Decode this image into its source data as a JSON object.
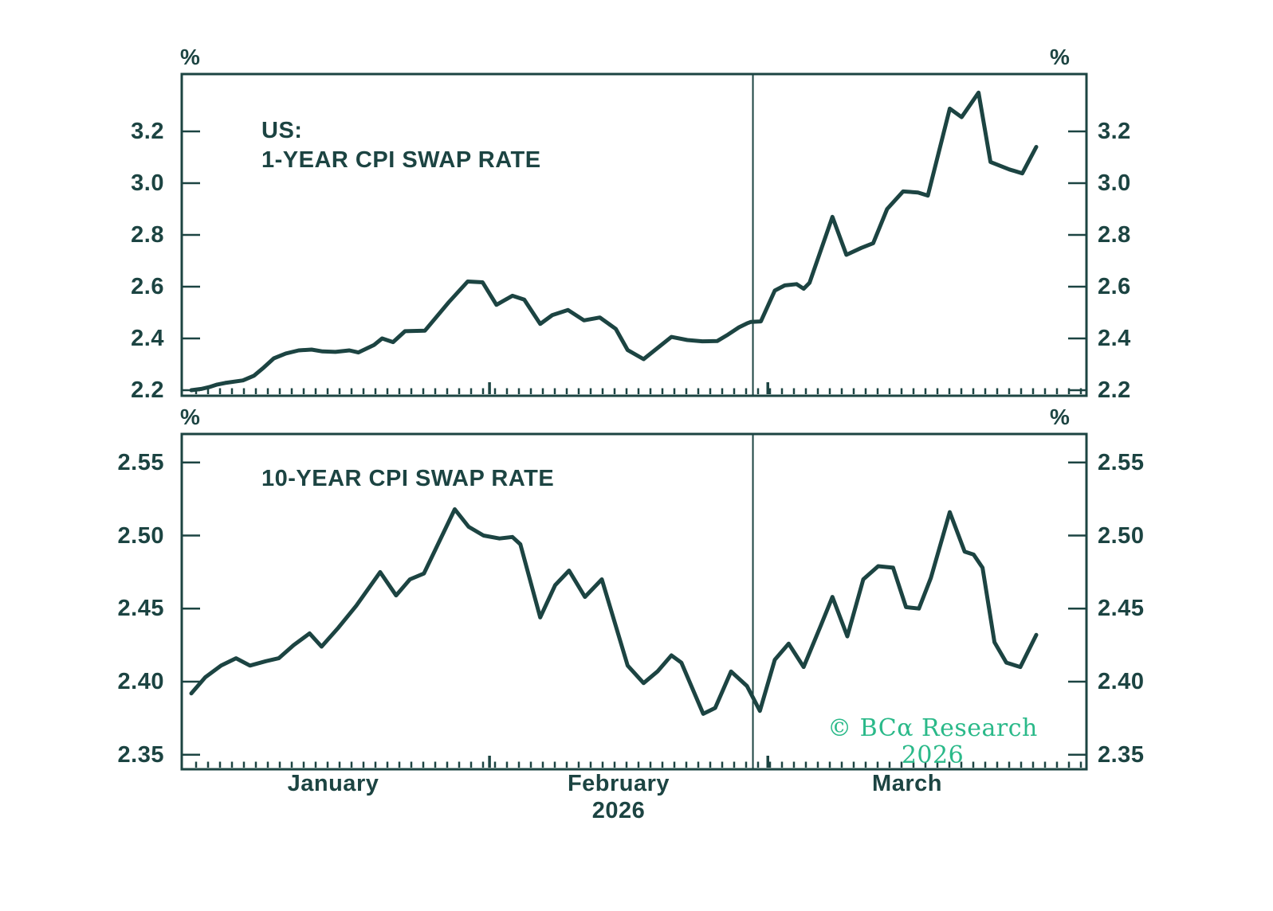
{
  "colors": {
    "ink": "#1c4442",
    "watermark_green": "#2ab989",
    "background": "#ffffff"
  },
  "watermark": {
    "text": "© BCα Research 2026"
  },
  "xaxis": {
    "months": [
      {
        "label": "January",
        "day_center": 14.3
      },
      {
        "label": "February",
        "day_center": 43.0
      },
      {
        "label": "March",
        "day_center": 72.0
      }
    ],
    "year_label": "2026",
    "month_boundary_days": [
      30,
      58
    ],
    "divider_day": 56.5,
    "day_span": [
      0,
      90
    ]
  },
  "chart_data": [
    {
      "type": "line",
      "panel": "top",
      "title_lines": [
        "US:",
        "1-YEAR CPI SWAP RATE"
      ],
      "title": "US: 1-YEAR CPI SWAP RATE",
      "unit": "%",
      "xlabel": "",
      "ylabel": "%",
      "ylim": [
        2.18,
        3.42
      ],
      "grid": false,
      "legend": "none",
      "yticks": [
        3.2,
        3.0,
        2.8,
        2.6,
        2.4,
        2.2
      ],
      "ytick_labels": [
        "3.2",
        "3.0",
        "2.8",
        "2.6",
        "2.4",
        "2.2"
      ],
      "x_months": [
        "January",
        "February",
        "March"
      ],
      "year": "2026",
      "vline_day": 56.5,
      "series": [
        {
          "name": "1-year-cpi-swap-rate",
          "points": [
            [
              0,
              2.2
            ],
            [
              1,
              2.205
            ],
            [
              1.8,
              2.212
            ],
            [
              2.6,
              2.222
            ],
            [
              3.4,
              2.228
            ],
            [
              5.2,
              2.238
            ],
            [
              6.3,
              2.256
            ],
            [
              7.3,
              2.288
            ],
            [
              8.3,
              2.323
            ],
            [
              9.5,
              2.342
            ],
            [
              10.8,
              2.354
            ],
            [
              12.1,
              2.357
            ],
            [
              13.2,
              2.35
            ],
            [
              14.5,
              2.348
            ],
            [
              15.9,
              2.354
            ],
            [
              16.8,
              2.346
            ],
            [
              18.4,
              2.375
            ],
            [
              19.2,
              2.4
            ],
            [
              20.3,
              2.386
            ],
            [
              21.5,
              2.428
            ],
            [
              23.5,
              2.43
            ],
            [
              25.9,
              2.54
            ],
            [
              27.8,
              2.62
            ],
            [
              29.3,
              2.617
            ],
            [
              30.7,
              2.53
            ],
            [
              32.3,
              2.565
            ],
            [
              33.5,
              2.55
            ],
            [
              35.1,
              2.456
            ],
            [
              36.3,
              2.49
            ],
            [
              37.9,
              2.51
            ],
            [
              39.5,
              2.47
            ],
            [
              41.1,
              2.481
            ],
            [
              42.7,
              2.437
            ],
            [
              43.9,
              2.355
            ],
            [
              45.5,
              2.32
            ],
            [
              48.3,
              2.406
            ],
            [
              49.9,
              2.394
            ],
            [
              51.4,
              2.389
            ],
            [
              52.9,
              2.39
            ],
            [
              54,
              2.415
            ],
            [
              55.1,
              2.443
            ],
            [
              55.9,
              2.458
            ],
            [
              56.3,
              2.464
            ],
            [
              57.3,
              2.466
            ],
            [
              58.7,
              2.585
            ],
            [
              59.7,
              2.605
            ],
            [
              60.9,
              2.61
            ],
            [
              61.6,
              2.592
            ],
            [
              62.2,
              2.615
            ],
            [
              64.5,
              2.87
            ],
            [
              65.9,
              2.723
            ],
            [
              67.4,
              2.75
            ],
            [
              68.6,
              2.768
            ],
            [
              70,
              2.9
            ],
            [
              71.6,
              2.968
            ],
            [
              73.1,
              2.964
            ],
            [
              74.1,
              2.952
            ],
            [
              76.3,
              3.288
            ],
            [
              77.5,
              3.255
            ],
            [
              79.2,
              3.35
            ],
            [
              80.4,
              3.082
            ],
            [
              82.3,
              3.053
            ],
            [
              83.6,
              3.038
            ],
            [
              85,
              3.14
            ]
          ]
        }
      ]
    },
    {
      "type": "line",
      "panel": "bottom",
      "title_lines": [
        "10-YEAR CPI SWAP RATE"
      ],
      "title": "10-YEAR CPI SWAP RATE",
      "unit": "%",
      "xlabel": "",
      "ylabel": "%",
      "ylim": [
        2.34,
        2.57
      ],
      "grid": false,
      "legend": "none",
      "yticks": [
        2.55,
        2.5,
        2.45,
        2.4,
        2.35
      ],
      "ytick_labels": [
        "2.55",
        "2.50",
        "2.45",
        "2.40",
        "2.35"
      ],
      "x_months": [
        "January",
        "February",
        "March"
      ],
      "year": "2026",
      "vline_day": 56.5,
      "series": [
        {
          "name": "10-year-cpi-swap-rate",
          "points": [
            [
              0,
              2.392
            ],
            [
              1.4,
              2.403
            ],
            [
              3,
              2.411
            ],
            [
              4.5,
              2.416
            ],
            [
              5.9,
              2.411
            ],
            [
              7.5,
              2.414
            ],
            [
              8.8,
              2.416
            ],
            [
              10.3,
              2.425
            ],
            [
              11.9,
              2.433
            ],
            [
              13.1,
              2.424
            ],
            [
              14.8,
              2.437
            ],
            [
              16.6,
              2.452
            ],
            [
              19,
              2.475
            ],
            [
              20.6,
              2.459
            ],
            [
              22,
              2.47
            ],
            [
              23.4,
              2.474
            ],
            [
              26.5,
              2.518
            ],
            [
              27.9,
              2.506
            ],
            [
              29.4,
              2.5
            ],
            [
              31,
              2.498
            ],
            [
              32.3,
              2.499
            ],
            [
              33.1,
              2.494
            ],
            [
              35.1,
              2.444
            ],
            [
              36.6,
              2.466
            ],
            [
              38,
              2.476
            ],
            [
              39.6,
              2.458
            ],
            [
              41.3,
              2.47
            ],
            [
              43.9,
              2.411
            ],
            [
              45.5,
              2.399
            ],
            [
              46.9,
              2.407
            ],
            [
              48.3,
              2.418
            ],
            [
              49.3,
              2.413
            ],
            [
              51.5,
              2.378
            ],
            [
              52.7,
              2.382
            ],
            [
              54.3,
              2.407
            ],
            [
              55.9,
              2.397
            ],
            [
              57.2,
              2.38
            ],
            [
              58.7,
              2.415
            ],
            [
              60.1,
              2.426
            ],
            [
              61.6,
              2.41
            ],
            [
              63.3,
              2.438
            ],
            [
              64.5,
              2.458
            ],
            [
              66,
              2.431
            ],
            [
              67.6,
              2.47
            ],
            [
              69.1,
              2.479
            ],
            [
              70.6,
              2.478
            ],
            [
              71.9,
              2.451
            ],
            [
              73.2,
              2.45
            ],
            [
              74.4,
              2.471
            ],
            [
              76.3,
              2.516
            ],
            [
              77.8,
              2.489
            ],
            [
              78.7,
              2.487
            ],
            [
              79.6,
              2.478
            ],
            [
              80.8,
              2.427
            ],
            [
              82,
              2.413
            ],
            [
              83.4,
              2.41
            ],
            [
              85,
              2.432
            ]
          ]
        }
      ]
    }
  ]
}
